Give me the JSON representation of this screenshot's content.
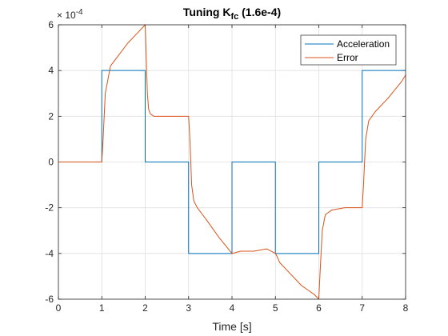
{
  "chart_data": {
    "type": "line",
    "title": "Tuning K",
    "title_subscript": "fc",
    "title_suffix": " (1.6e-4)",
    "xlabel": "Time [s]",
    "ylabel": "",
    "xlim": [
      0,
      8
    ],
    "ylim": [
      -0.0006,
      0.0006
    ],
    "x_ticks": [
      0,
      1,
      2,
      3,
      4,
      5,
      6,
      7,
      8
    ],
    "x_tick_labels": [
      "0",
      "1",
      "2",
      "3",
      "4",
      "5",
      "6",
      "7",
      "8"
    ],
    "y_ticks": [
      -6,
      -4,
      -2,
      0,
      2,
      4,
      6
    ],
    "y_tick_labels": [
      "-6",
      "-4",
      "-2",
      "0",
      "2",
      "4",
      "6"
    ],
    "y_exponent_multiplier": "× 10",
    "y_exponent_power": "-4",
    "grid": true,
    "legend_placement": "top-right",
    "series": [
      {
        "name": "Acceleration",
        "color": "#0072BD",
        "x": [
          0,
          1,
          1,
          2,
          2,
          3,
          3,
          4,
          4,
          5,
          5,
          6,
          6,
          7,
          7,
          8
        ],
        "y": [
          0,
          0,
          0.0004,
          0.0004,
          0,
          0,
          -0.0004,
          -0.0004,
          0,
          0,
          -0.0004,
          -0.0004,
          0,
          0,
          0.0004,
          0.0004
        ]
      },
      {
        "name": "Error",
        "color": "#D95319",
        "x": [
          0,
          1.0,
          1.03,
          1.08,
          1.2,
          1.4,
          1.6,
          1.8,
          2.0,
          2.02,
          2.05,
          2.08,
          2.12,
          2.2,
          2.4,
          2.7,
          3.0,
          3.03,
          3.07,
          3.12,
          3.2,
          3.4,
          3.7,
          4.0,
          4.2,
          4.5,
          4.8,
          5.0,
          5.03,
          5.1,
          5.3,
          5.6,
          5.9,
          6.0,
          6.03,
          6.08,
          6.15,
          6.3,
          6.6,
          7.0,
          7.03,
          7.08,
          7.15,
          7.3,
          7.6,
          7.9,
          8.0
        ],
        "y": [
          0,
          0,
          0.0001,
          0.0003,
          0.00042,
          0.00047,
          0.00052,
          0.00056,
          0.0006,
          0.00048,
          0.0003,
          0.00023,
          0.00021,
          0.0002,
          0.0002,
          0.0002,
          0.0002,
          0.0001,
          -0.0001,
          -0.00017,
          -0.0002,
          -0.00025,
          -0.00033,
          -0.0004,
          -0.00039,
          -0.00039,
          -0.00038,
          -0.0004,
          -0.00041,
          -0.00044,
          -0.00048,
          -0.00054,
          -0.00058,
          -0.0006,
          -0.00048,
          -0.0003,
          -0.00023,
          -0.00021,
          -0.0002,
          -0.0002,
          -0.0001,
          0.0001,
          0.00018,
          0.00022,
          0.00028,
          0.00035,
          0.00038
        ]
      }
    ]
  }
}
